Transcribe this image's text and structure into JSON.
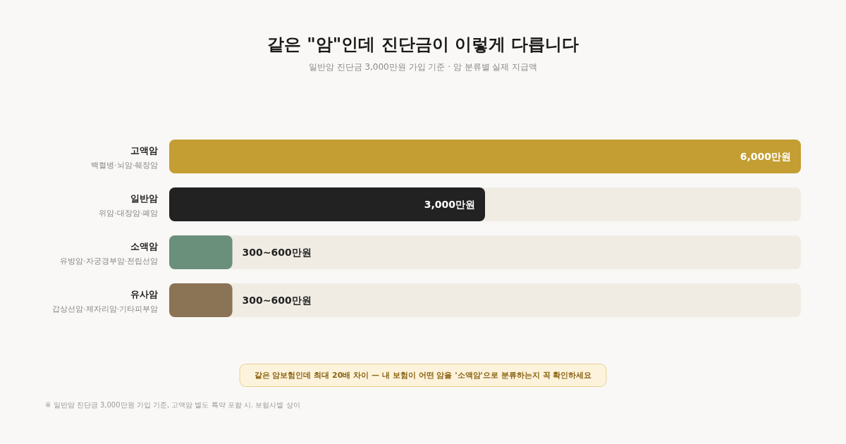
{
  "chart_data": {
    "type": "bar",
    "orientation": "horizontal",
    "title": "같은 \"암\"인데 진단금이 이렇게 다릅니다",
    "subtitle": "일반암 진단금 3,000만원 가입 기준 · 암 분류별 실제 지급액",
    "categories": [
      "고액암\n백혈병·뇌암·췌장암",
      "일반암\n위암·대장암·폐암",
      "소액암\n유방암·자궁경부암·전립선암",
      "유사암\n갑상선암·제자리암·기타피부암"
    ],
    "values": [
      6000,
      3000,
      600,
      600
    ],
    "colors": [
      "#c49e33",
      "#222222",
      "#6a8f7b",
      "#8b7355"
    ],
    "value_labels": [
      "6,000만원",
      "3,000만원",
      "300~600만원",
      "300~600만원"
    ],
    "annotations": [
      "같은 암보험인데 최대 20배 차이 — 내 보험이 어떤 암을 '소액암'으로 분류하는지 꼭 확인하세요",
      "※ 일반암 진단금 3,000만원 가입 기준, 고액암 별도 특약 포함 시. 보험사별 상이"
    ]
  }
}
